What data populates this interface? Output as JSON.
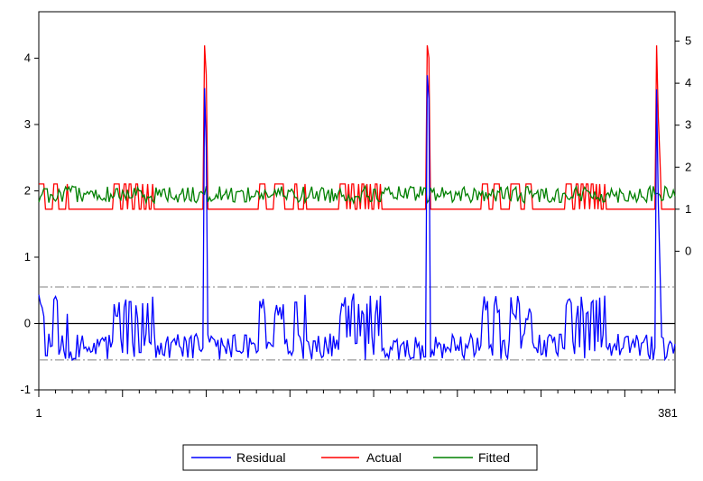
{
  "chart_data": {
    "type": "line",
    "title": "",
    "xlabel": "",
    "ylabel_left": "",
    "ylabel_right": "",
    "x_range": [
      1,
      381
    ],
    "x_tick_labels": [
      "1",
      "381"
    ],
    "left_axis": {
      "range": [
        -1,
        4.7
      ],
      "ticks": [
        "-1",
        "0",
        "1",
        "2",
        "3",
        "4"
      ]
    },
    "right_axis": {
      "range": [
        -3.3,
        5.7
      ],
      "ticks": [
        "0",
        "1",
        "2",
        "3",
        "4",
        "5"
      ]
    },
    "residual_bands": [
      0.55,
      -0.55
    ],
    "legend": {
      "position": "bottom-center",
      "items": [
        "Residual",
        "Actual",
        "Fitted"
      ]
    },
    "colors": {
      "residual": "#0000ff",
      "actual": "#ff0000",
      "fitted": "#008000",
      "band": "#808080",
      "zero": "#000000"
    },
    "series": [
      {
        "name": "Actual",
        "axis": "right",
        "spikes": [
          {
            "x": 100,
            "y": 4.9
          },
          {
            "x": 101,
            "y": 4.2
          },
          {
            "x": 233,
            "y": 4.9
          },
          {
            "x": 234,
            "y": 4.6
          },
          {
            "x": 370,
            "y": 4.9
          },
          {
            "x": 371,
            "y": 3.2
          },
          {
            "x": 372,
            "y": 2.2
          }
        ],
        "segments": [
          {
            "x": [
              1,
              18
            ],
            "pattern": "square",
            "low": 1.0,
            "high": 1.6
          },
          {
            "x": [
              19,
              45
            ],
            "pattern": "flat",
            "low": 1.0,
            "high": 1.0
          },
          {
            "x": [
              46,
              70
            ],
            "pattern": "dense",
            "low": 1.0,
            "high": 1.6
          },
          {
            "x": [
              71,
              132
            ],
            "pattern": "flat",
            "low": 1.0,
            "high": 1.0
          },
          {
            "x": [
              133,
              160
            ],
            "pattern": "square",
            "low": 1.0,
            "high": 1.6
          },
          {
            "x": [
              161,
              180
            ],
            "pattern": "flat",
            "low": 1.0,
            "high": 1.0
          },
          {
            "x": [
              181,
              205
            ],
            "pattern": "dense",
            "low": 1.0,
            "high": 1.6
          },
          {
            "x": [
              206,
              265
            ],
            "pattern": "flat",
            "low": 1.0,
            "high": 1.0
          },
          {
            "x": [
              266,
              295
            ],
            "pattern": "square",
            "low": 1.0,
            "high": 1.6
          },
          {
            "x": [
              296,
              315
            ],
            "pattern": "flat",
            "low": 1.0,
            "high": 1.0
          },
          {
            "x": [
              316,
              340
            ],
            "pattern": "dense",
            "low": 1.0,
            "high": 1.6
          },
          {
            "x": [
              341,
              381
            ],
            "pattern": "flat",
            "low": 1.0,
            "high": 1.0
          }
        ]
      },
      {
        "name": "Fitted",
        "axis": "right",
        "baseline": 1.35,
        "spread": 0.2,
        "seed": 7
      },
      {
        "name": "Residual",
        "axis": "left",
        "derived_from": [
          "Actual",
          "Fitted"
        ]
      }
    ]
  }
}
